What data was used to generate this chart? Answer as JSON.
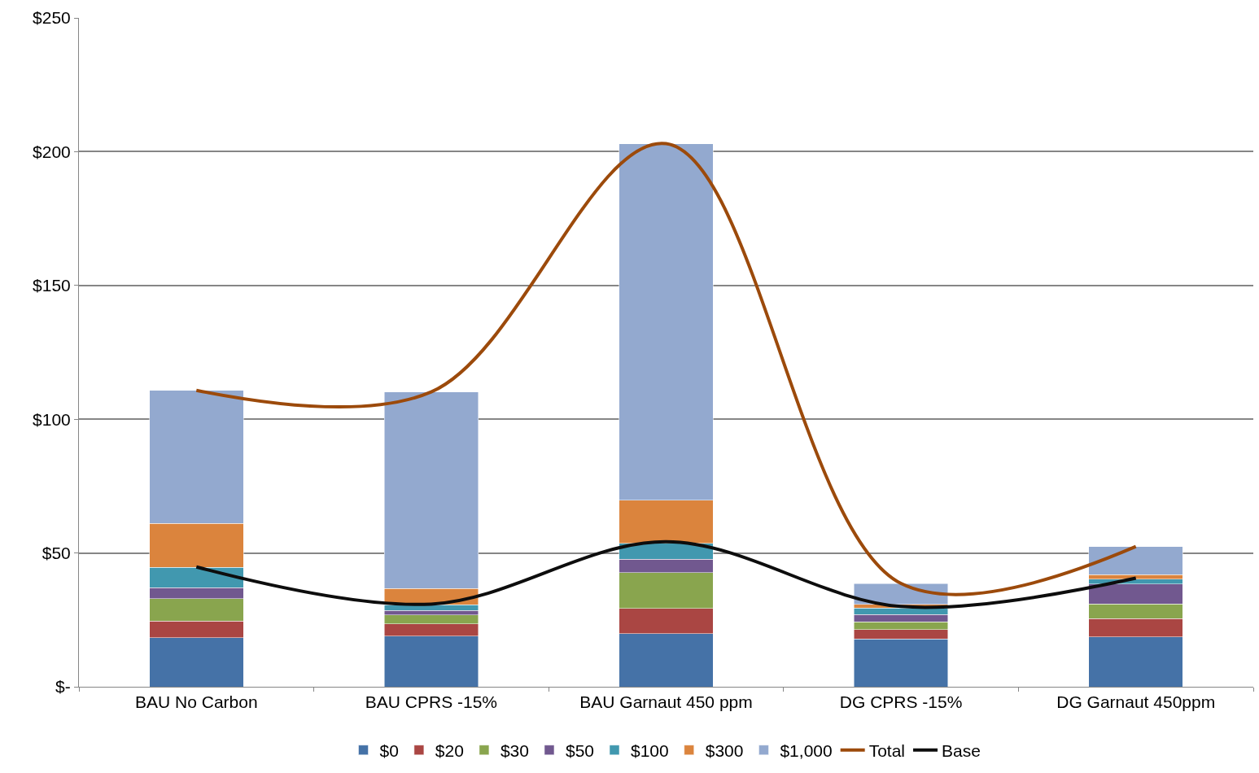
{
  "chart_data": {
    "type": "bar",
    "stacked": true,
    "categories": [
      "BAU No Carbon",
      "BAU CPRS -15%",
      "BAU Garnaut 450 ppm",
      "DG CPRS -15%",
      "DG Garnaut 450ppm"
    ],
    "series": [
      {
        "name": "$0",
        "color": "#4572a7",
        "values": [
          18.4,
          19.0,
          19.9,
          17.8,
          18.7
        ]
      },
      {
        "name": "$20",
        "color": "#aa4643",
        "values": [
          6.2,
          4.5,
          9.3,
          3.5,
          6.8
        ]
      },
      {
        "name": "$30",
        "color": "#89a54e",
        "values": [
          8.3,
          3.4,
          13.5,
          2.9,
          5.4
        ]
      },
      {
        "name": "$50",
        "color": "#71588f",
        "values": [
          4.2,
          1.6,
          4.9,
          2.8,
          7.5
        ]
      },
      {
        "name": "$100",
        "color": "#4198af",
        "values": [
          7.6,
          2.2,
          6.0,
          2.4,
          1.8
        ]
      },
      {
        "name": "$300",
        "color": "#db843d",
        "values": [
          16.4,
          6.1,
          16.2,
          1.4,
          1.7
        ]
      },
      {
        "name": "$1,000",
        "color": "#93a9cf",
        "values": [
          49.7,
          73.3,
          133.2,
          7.8,
          10.5
        ]
      },
      {
        "name": "Total",
        "type": "line",
        "color": "#9c4a0b",
        "line_style": "solid",
        "marker": "none",
        "values": [
          110.8,
          110.2,
          203.0,
          38.6,
          52.4
        ]
      },
      {
        "name": "Base",
        "type": "line",
        "color": "#0d0d0d",
        "line_style": "solid",
        "marker": "none",
        "values": [
          44.8,
          30.9,
          54.2,
          30.0,
          40.6
        ]
      }
    ],
    "ylim": [
      0,
      250
    ],
    "yticks": [
      {
        "value": 0,
        "label": "$-"
      },
      {
        "value": 50,
        "label": "$50"
      },
      {
        "value": 100,
        "label": "$100"
      },
      {
        "value": 150,
        "label": "$150"
      },
      {
        "value": 200,
        "label": "$200"
      },
      {
        "value": 250,
        "label": "$250"
      }
    ],
    "grid": "y",
    "legend": "bottom"
  }
}
